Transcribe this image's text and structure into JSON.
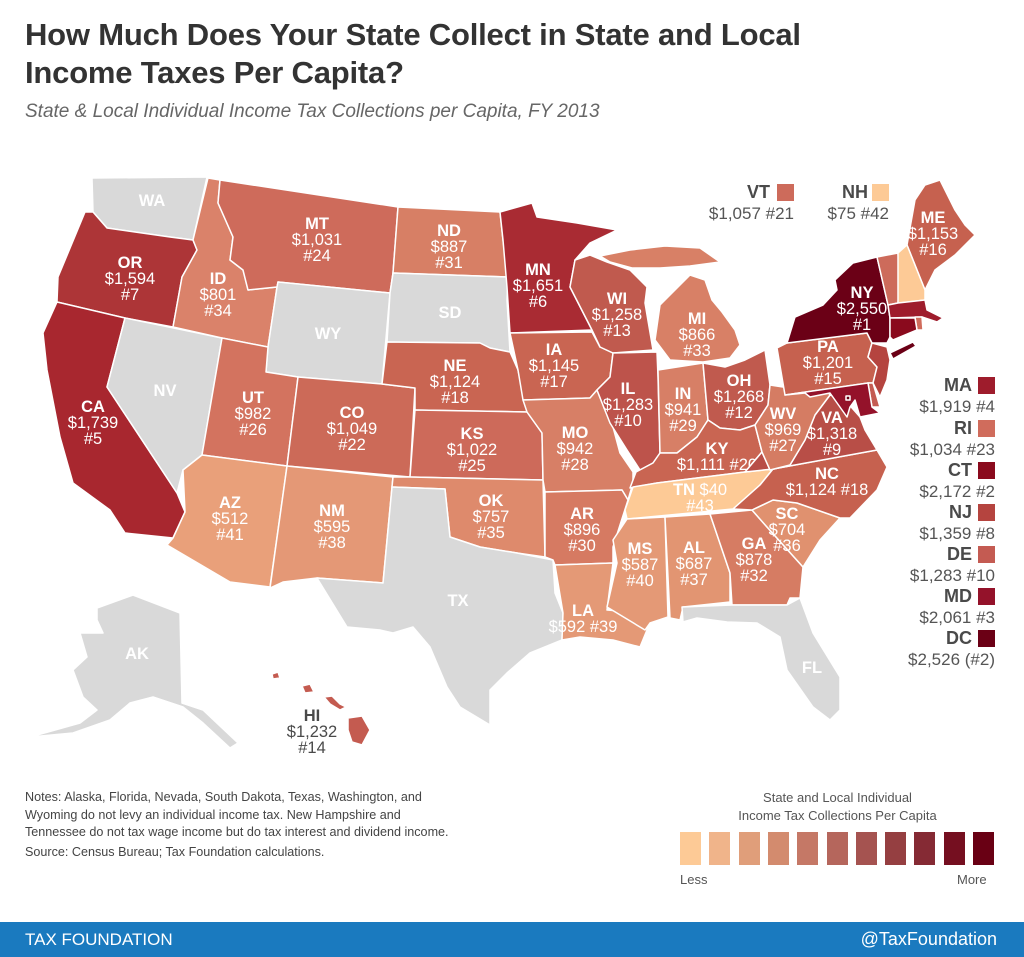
{
  "header": {
    "title_line1": "How Much Does Your State Collect in State and Local",
    "title_line2": "Income Taxes Per Capita?",
    "subtitle": "State & Local Individual Income Tax Collections per Capita, FY 2013"
  },
  "no_tax_color": "#d9d9d9",
  "states": [
    {
      "abbr": "WA",
      "value": null,
      "rank": null,
      "color": "#d9d9d9"
    },
    {
      "abbr": "OR",
      "value": "$1,594",
      "rank": "#7",
      "color": "#ad3537"
    },
    {
      "abbr": "CA",
      "value": "$1,739",
      "rank": "#5",
      "color": "#a8272f"
    },
    {
      "abbr": "NV",
      "value": null,
      "rank": null,
      "color": "#d9d9d9"
    },
    {
      "abbr": "ID",
      "value": "$801",
      "rank": "#34",
      "color": "#da826a"
    },
    {
      "abbr": "MT",
      "value": "$1,031",
      "rank": "#24",
      "color": "#ce6b5b"
    },
    {
      "abbr": "WY",
      "value": null,
      "rank": null,
      "color": "#d9d9d9"
    },
    {
      "abbr": "UT",
      "value": "$982",
      "rank": "#26",
      "color": "#d3735f"
    },
    {
      "abbr": "CO",
      "value": "$1,049",
      "rank": "#22",
      "color": "#cc6a58"
    },
    {
      "abbr": "AZ",
      "value": "$512",
      "rank": "#41",
      "color": "#e9a07a"
    },
    {
      "abbr": "NM",
      "value": "$595",
      "rank": "#38",
      "color": "#e49876"
    },
    {
      "abbr": "ND",
      "value": "$887",
      "rank": "#31",
      "color": "#d77f65"
    },
    {
      "abbr": "SD",
      "value": null,
      "rank": null,
      "color": "#d9d9d9"
    },
    {
      "abbr": "NE",
      "value": "$1,124",
      "rank": "#18",
      "color": "#c96552"
    },
    {
      "abbr": "KS",
      "value": "$1,022",
      "rank": "#25",
      "color": "#cd6a5a"
    },
    {
      "abbr": "OK",
      "value": "$757",
      "rank": "#35",
      "color": "#de8a6c"
    },
    {
      "abbr": "TX",
      "value": null,
      "rank": null,
      "color": "#d9d9d9"
    },
    {
      "abbr": "MN",
      "value": "$1,651",
      "rank": "#6",
      "color": "#a92b33"
    },
    {
      "abbr": "IA",
      "value": "$1,145",
      "rank": "#17",
      "color": "#c96552"
    },
    {
      "abbr": "MO",
      "value": "$942",
      "rank": "#28",
      "color": "#d77f66"
    },
    {
      "abbr": "AR",
      "value": "$896",
      "rank": "#30",
      "color": "#d67a62"
    },
    {
      "abbr": "LA",
      "value": "$592",
      "rank": "#39",
      "color": "#e49976"
    },
    {
      "abbr": "WI",
      "value": "$1,258",
      "rank": "#13",
      "color": "#c05a4e"
    },
    {
      "abbr": "MI",
      "value": "$866",
      "rank": "#33",
      "color": "#d88066"
    },
    {
      "abbr": "IL",
      "value": "$1,283",
      "rank": "#10",
      "color": "#bd534b"
    },
    {
      "abbr": "IN",
      "value": "$941",
      "rank": "#29",
      "color": "#d77f66"
    },
    {
      "abbr": "OH",
      "value": "$1,268",
      "rank": "#12",
      "color": "#c05a4e"
    },
    {
      "abbr": "KY",
      "value": "$1,111",
      "rank": "#20",
      "color": "#c96552"
    },
    {
      "abbr": "TN",
      "value": "$40",
      "rank": "#43",
      "color": "#fdca96"
    },
    {
      "abbr": "MS",
      "value": "$587",
      "rank": "#40",
      "color": "#e49976"
    },
    {
      "abbr": "AL",
      "value": "$687",
      "rank": "#37",
      "color": "#e29572"
    },
    {
      "abbr": "GA",
      "value": "$878",
      "rank": "#32",
      "color": "#d67c63"
    },
    {
      "abbr": "FL",
      "value": null,
      "rank": null,
      "color": "#d9d9d9"
    },
    {
      "abbr": "SC",
      "value": "$704",
      "rank": "#36",
      "color": "#e0916f"
    },
    {
      "abbr": "NC",
      "value": "$1,124",
      "rank": "#18",
      "color": "#c6614f"
    },
    {
      "abbr": "VA",
      "value": "$1,318",
      "rank": "#9",
      "color": "#b84e47"
    },
    {
      "abbr": "WV",
      "value": "$969",
      "rank": "#27",
      "color": "#d57c63"
    },
    {
      "abbr": "PA",
      "value": "$1,201",
      "rank": "#15",
      "color": "#c6614f"
    },
    {
      "abbr": "NY",
      "value": "$2,550",
      "rank": "#1",
      "color": "#6b0016"
    },
    {
      "abbr": "ME",
      "value": "$1,153",
      "rank": "#16",
      "color": "#c6614f"
    },
    {
      "abbr": "VT",
      "value": "$1,057",
      "rank": "#21",
      "color": "#cd6b5b"
    },
    {
      "abbr": "NH",
      "value": "$75",
      "rank": "#42",
      "color": "#fdca96"
    },
    {
      "abbr": "MA",
      "value": "$1,919",
      "rank": "#4",
      "color": "#9e1c2c"
    },
    {
      "abbr": "RI",
      "value": "$1,034",
      "rank": "#23",
      "color": "#d06c5c"
    },
    {
      "abbr": "CT",
      "value": "$2,172",
      "rank": "#2",
      "color": "#8a0a1d"
    },
    {
      "abbr": "NJ",
      "value": "$1,359",
      "rank": "#8",
      "color": "#b5443f"
    },
    {
      "abbr": "DE",
      "value": "$1,283",
      "rank": "#10",
      "color": "#c45b52"
    },
    {
      "abbr": "MD",
      "value": "$2,061",
      "rank": "#3",
      "color": "#94122a"
    },
    {
      "abbr": "DC",
      "value": "$2,526",
      "rank": "(#2)",
      "color": "#6b0015"
    },
    {
      "abbr": "AK",
      "value": null,
      "rank": null,
      "color": "#d9d9d9"
    },
    {
      "abbr": "HI",
      "value": "$1,232",
      "rank": "#14",
      "color": "#c45b50"
    }
  ],
  "legend": {
    "title_line1": "State and Local Individual",
    "title_line2": "Income Tax Collections Per Capita",
    "less": "Less",
    "more": "More",
    "colors": [
      "#fdca96",
      "#f0b48a",
      "#e09e7a",
      "#d38b6e",
      "#c57866",
      "#b5665c",
      "#a55350",
      "#953f41",
      "#852a34",
      "#750f20",
      "#690014"
    ]
  },
  "notes": {
    "line1": "Notes: Alaska, Florida, Nevada, South Dakota, Texas, Washington, and",
    "line2": "Wyoming do not levy an individual income tax. New Hampshire and",
    "line3": "Tennessee do not tax wage income but do tax interest and dividend income.",
    "source": "Source: Census Bureau; Tax Foundation calculations."
  },
  "footer": {
    "brand": "TAX FOUNDATION",
    "handle": "@TaxFoundation",
    "bar_color": "#1a7abf"
  }
}
